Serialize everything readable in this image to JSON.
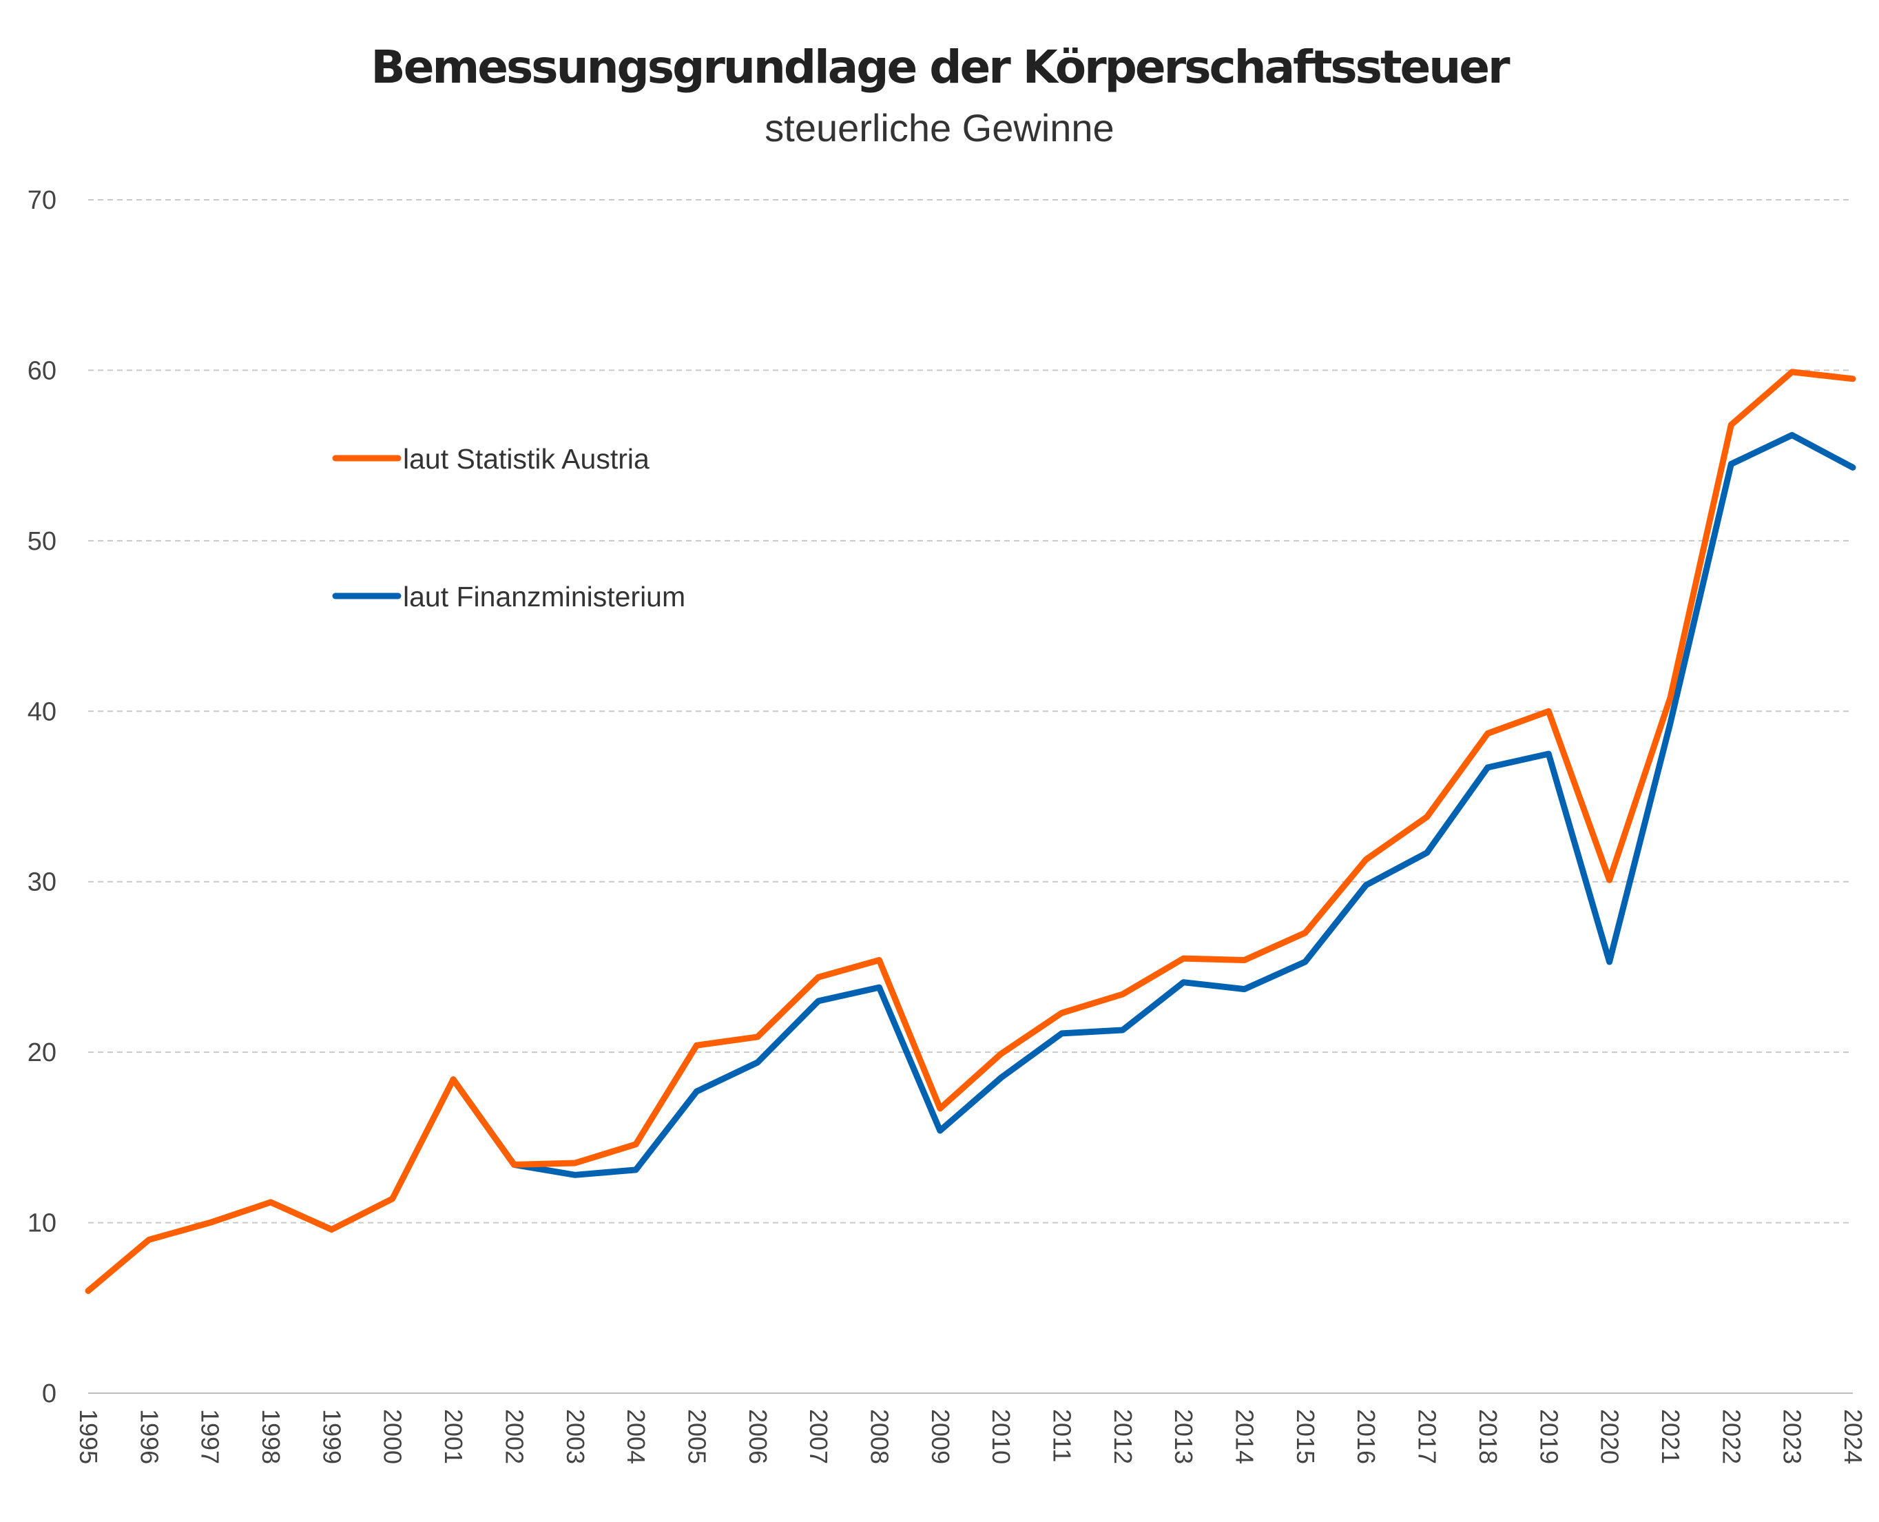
{
  "chart_data": {
    "type": "line",
    "title": "Bemessungsgrundlage der Körperschaftssteuer",
    "subtitle": "steuerliche Gewinne",
    "xlabel": "",
    "ylabel": "",
    "ylim": [
      0,
      70
    ],
    "yticks": [
      "0",
      "10",
      "20",
      "30",
      "40",
      "50",
      "60",
      "70"
    ],
    "categories": [
      "1995",
      "1996",
      "1997",
      "1998",
      "1999",
      "2000",
      "2001",
      "2002",
      "2003",
      "2004",
      "2005",
      "2006",
      "2007",
      "2008",
      "2009",
      "2010",
      "2011",
      "2012",
      "2013",
      "2014",
      "2015",
      "2016",
      "2017",
      "2018",
      "2019",
      "2020",
      "2021",
      "2022",
      "2023",
      "2024"
    ],
    "grid": true,
    "legend_position": "upper-left",
    "series": [
      {
        "name": "laut Statistik Austria",
        "color": "#ff5f00",
        "values": [
          6.0,
          9.0,
          10.0,
          11.2,
          9.6,
          11.4,
          18.4,
          13.4,
          13.5,
          14.6,
          20.4,
          20.9,
          24.4,
          25.4,
          16.7,
          19.9,
          22.3,
          23.4,
          25.5,
          25.4,
          27.0,
          31.3,
          33.8,
          38.7,
          40.0,
          30.1,
          40.8,
          56.8,
          59.9,
          59.5
        ]
      },
      {
        "name": "laut Finanzministerium",
        "color": "#0062b1",
        "values": [
          null,
          null,
          null,
          null,
          null,
          null,
          18.4,
          13.4,
          12.8,
          13.1,
          17.7,
          19.4,
          23.0,
          23.8,
          15.4,
          18.5,
          21.1,
          21.3,
          24.1,
          23.7,
          25.3,
          29.8,
          31.7,
          36.7,
          37.5,
          25.3,
          39.3,
          54.5,
          56.2,
          54.3
        ]
      }
    ]
  }
}
